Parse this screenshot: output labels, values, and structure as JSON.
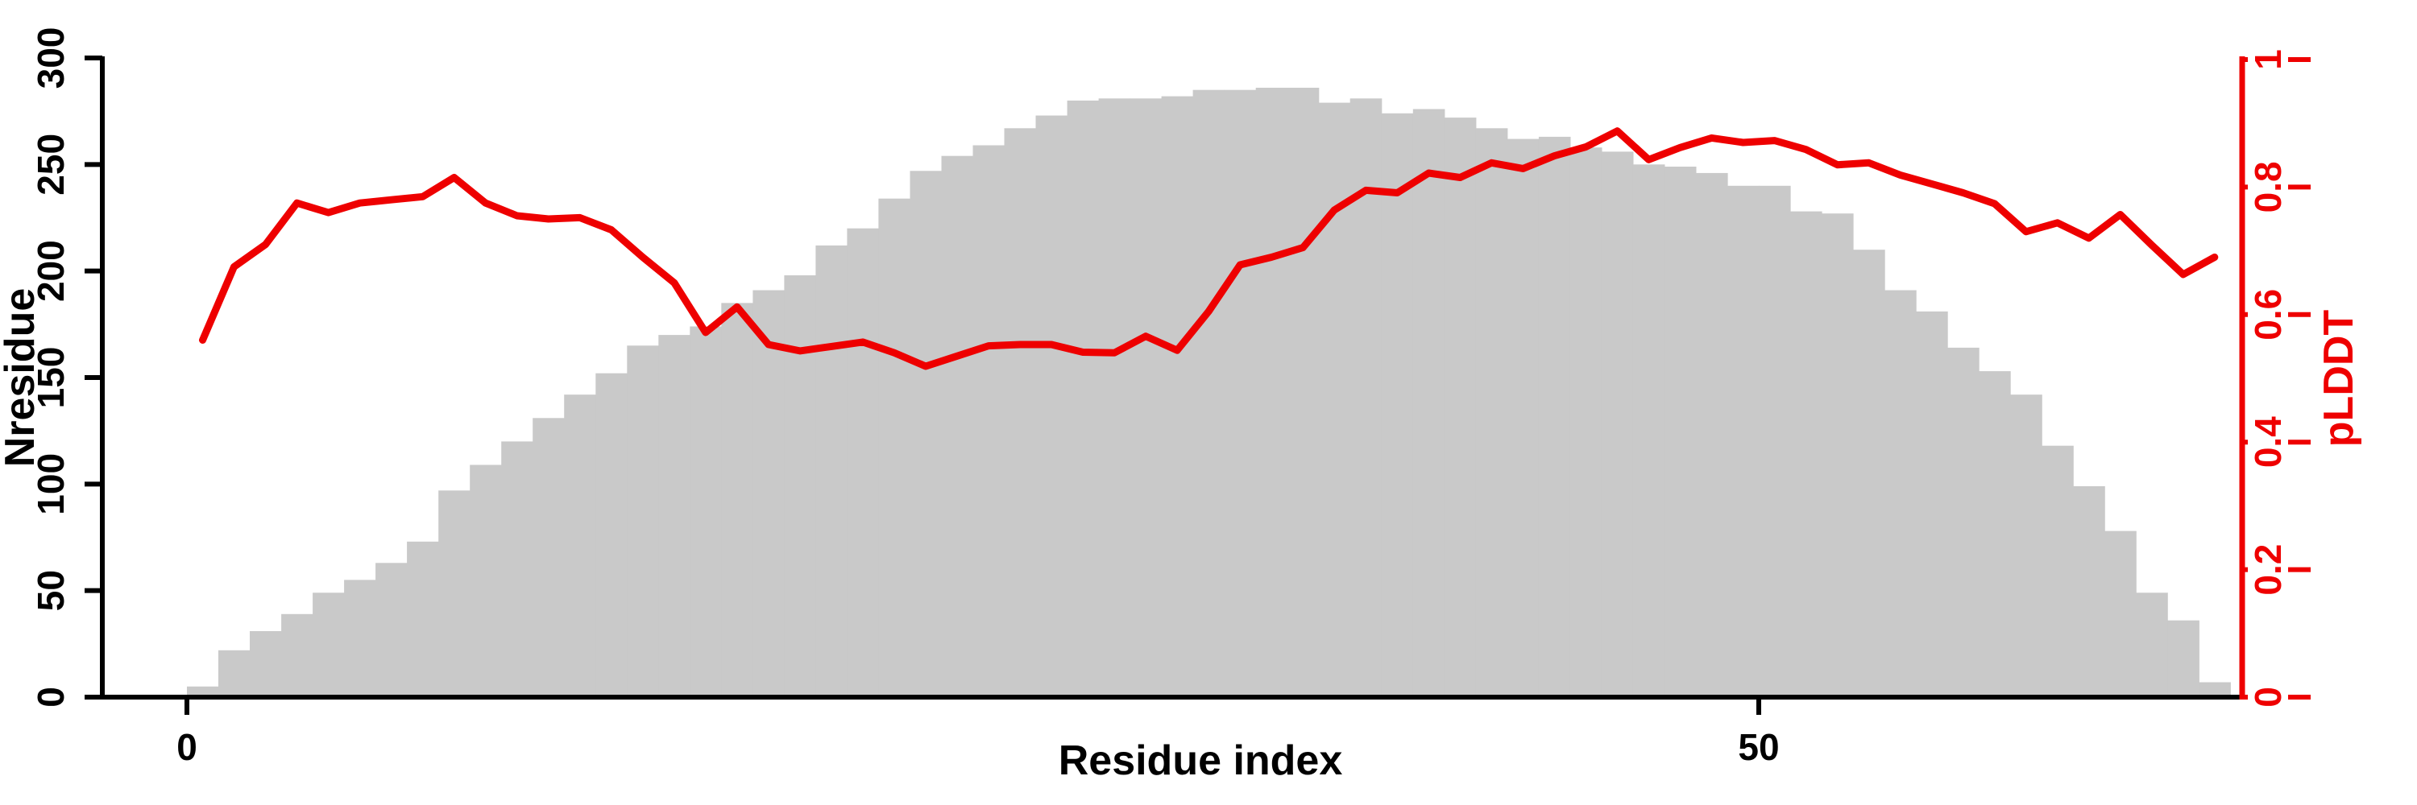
{
  "chart_data": {
    "type": "bar+line",
    "title": "",
    "xlabel": "Residue index",
    "ylabel_left": "Nresidue",
    "ylabel_right": "pLDDT",
    "x_axis": {
      "tick_values": [
        0,
        50
      ],
      "tick_labels": [
        "0",
        "50"
      ],
      "visible_range": [
        -2.7,
        65.4
      ]
    },
    "left_axis": {
      "tick_values": [
        0,
        50,
        100,
        150,
        200,
        250,
        300
      ],
      "tick_labels": [
        "0",
        "50",
        "100",
        "150",
        "200",
        "250",
        "300"
      ],
      "range": [
        0,
        300
      ]
    },
    "right_axis": {
      "tick_values": [
        0,
        0.2,
        0.4,
        0.6,
        0.8,
        1
      ],
      "tick_labels": [
        "0",
        "0.2",
        "0.4",
        "0.6",
        "0.8",
        "1"
      ],
      "range": [
        0,
        1
      ]
    },
    "bars": {
      "series_name": "Nresidue",
      "bin_start": 0,
      "bin_width": 1,
      "color": "#c9c9c9",
      "values": [
        5,
        22,
        31,
        39,
        49,
        55,
        63,
        73,
        97,
        109,
        120,
        131,
        142,
        152,
        165,
        170,
        174,
        185,
        191,
        198,
        212,
        220,
        234,
        247,
        254,
        259,
        267,
        273,
        280,
        281,
        281,
        282,
        285,
        285,
        286,
        286,
        279,
        281,
        274,
        276,
        272,
        267,
        262,
        263,
        258,
        256,
        250,
        249,
        246,
        240,
        240,
        228,
        227,
        210,
        191,
        181,
        164,
        153,
        142,
        118,
        99,
        78,
        49,
        36,
        7
      ]
    },
    "line": {
      "series_name": "pLDDT",
      "color": "#ee0000",
      "x_offset_from_bin": 0.5,
      "values": [
        0.56,
        0.675,
        0.71,
        0.775,
        0.76,
        0.775,
        0.78,
        0.785,
        0.815,
        0.775,
        0.755,
        0.75,
        0.752,
        0.733,
        0.69,
        0.65,
        0.572,
        0.612,
        0.553,
        0.543,
        0.55,
        0.557,
        0.54,
        0.519,
        0.535,
        0.551,
        0.553,
        0.553,
        0.541,
        0.54,
        0.566,
        0.544,
        0.605,
        0.678,
        0.69,
        0.705,
        0.764,
        0.795,
        0.791,
        0.822,
        0.815,
        0.838,
        0.829,
        0.849,
        0.863,
        0.888,
        0.843,
        0.862,
        0.877,
        0.87,
        0.873,
        0.859,
        0.835,
        0.838,
        0.819,
        0.805,
        0.791,
        0.774,
        0.73,
        0.744,
        0.72,
        0.757,
        0.709,
        0.663,
        0.69
      ]
    },
    "colors": {
      "bar_fill": "#c9c9c9",
      "line_stroke": "#ee0000",
      "right_axis_color": "#ee0000",
      "left_axis_color": "#000000",
      "background": "#ffffff"
    },
    "legend": "none",
    "grid": false
  }
}
